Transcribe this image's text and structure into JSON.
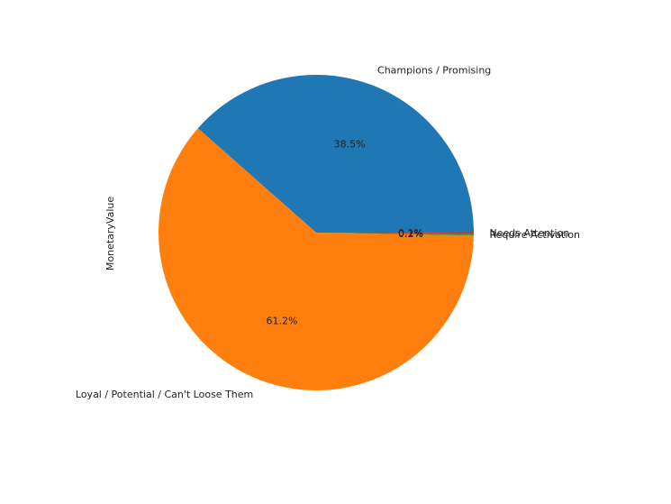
{
  "chart_data": {
    "type": "pie",
    "title": "",
    "ylabel": "MonetaryValue",
    "slices": [
      {
        "label": "Champions / Promising",
        "value": 38.5,
        "pct_label": "38.5%",
        "color": "#1f77b4"
      },
      {
        "label": "Loyal / Potential / Can't Loose Them",
        "value": 61.2,
        "pct_label": "61.2%",
        "color": "#ff7f0e"
      },
      {
        "label": "Require Activation",
        "value": 0.2,
        "pct_label": "0.2%",
        "color": "#2ca02c"
      },
      {
        "label": "Needs Attention",
        "value": 0.1,
        "pct_label": "0.1%",
        "color": "#d62728"
      }
    ]
  }
}
